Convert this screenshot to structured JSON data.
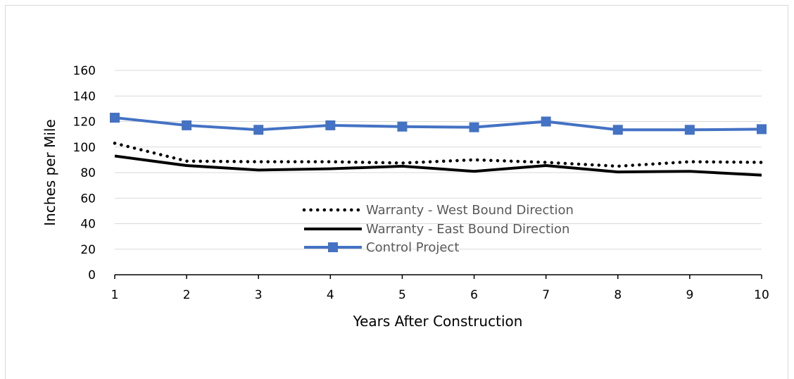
{
  "chart_data": {
    "type": "line",
    "title": "",
    "xlabel": "Years After Construction",
    "ylabel": "Inches per Mile",
    "x": [
      1,
      2,
      3,
      4,
      5,
      6,
      7,
      8,
      9,
      10
    ],
    "x_ticks": [
      "1",
      "2",
      "3",
      "4",
      "5",
      "6",
      "7",
      "8",
      "9",
      "10"
    ],
    "ylim": [
      0,
      160
    ],
    "y_ticks": [
      "0",
      "20",
      "40",
      "60",
      "80",
      "100",
      "120",
      "140",
      "160"
    ],
    "grid": "horizontal",
    "legend_position": "lower-center",
    "series": [
      {
        "name": "Warranty - West Bound Direction",
        "style": "dotted",
        "color": "#000000",
        "values": [
          103,
          89,
          88.5,
          88.5,
          87.5,
          90,
          88,
          85,
          88.5,
          88
        ]
      },
      {
        "name": "Warranty - East Bound Direction",
        "style": "solid",
        "color": "#000000",
        "values": [
          93,
          85.5,
          82,
          83,
          85,
          81,
          85.5,
          80.5,
          81,
          78
        ]
      },
      {
        "name": "Control Project",
        "style": "solid-square-markers",
        "color": "#4472c4",
        "values": [
          123,
          117,
          113.5,
          117,
          116,
          115.5,
          120,
          113.5,
          113.5,
          114
        ]
      }
    ]
  }
}
